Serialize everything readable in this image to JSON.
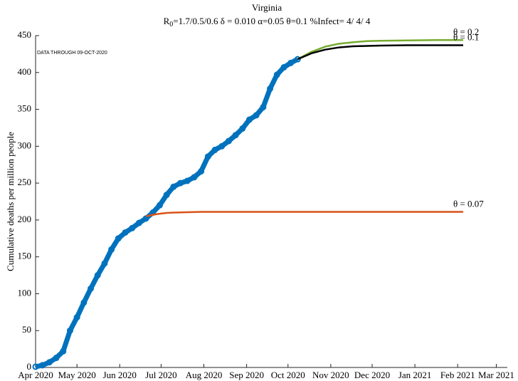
{
  "chart_data": {
    "type": "line",
    "title": "Virginia",
    "subtitle_parts": [
      "R",
      "0",
      "=1.7/0.5/0.6  δ = 0.010  α=0.05  θ=0.1  %Infect= 4/ 4/ 4"
    ],
    "annotation": "DATA THROUGH 09-OCT-2020",
    "ylabel": "Cumulative deaths per million people",
    "xlim": [
      0,
      342
    ],
    "ylim": [
      0,
      450
    ],
    "yticks": [
      0,
      50,
      100,
      150,
      200,
      250,
      300,
      350,
      400,
      450
    ],
    "xticks": [
      {
        "value": 0,
        "label": "Apr 2020"
      },
      {
        "value": 30,
        "label": "May 2020"
      },
      {
        "value": 61,
        "label": "Jun 2020"
      },
      {
        "value": 91,
        "label": "Jul 2020"
      },
      {
        "value": 122,
        "label": "Aug 2020"
      },
      {
        "value": 153,
        "label": "Sep 2020"
      },
      {
        "value": 183,
        "label": "Oct 2020"
      },
      {
        "value": 214,
        "label": "Nov 2020"
      },
      {
        "value": 244,
        "label": "Dec 2020"
      },
      {
        "value": 275,
        "label": "Jan 2021"
      },
      {
        "value": 306,
        "label": "Feb 2021"
      },
      {
        "value": 334,
        "label": "Mar 2021"
      }
    ],
    "series": [
      {
        "color": "#0072BD",
        "markers": true,
        "x": [
          0,
          5,
          10,
          15,
          20,
          25,
          30,
          35,
          40,
          45,
          50,
          55,
          60,
          65,
          70,
          75,
          80,
          85,
          90,
          95,
          100,
          105,
          110,
          115,
          120,
          125,
          130,
          135,
          140,
          145,
          150,
          155,
          160,
          165,
          170,
          175,
          180,
          185,
          190
        ],
        "values": [
          1,
          3,
          7,
          13,
          22,
          50,
          68,
          88,
          107,
          125,
          141,
          160,
          175,
          183,
          189,
          196,
          202,
          210,
          220,
          234,
          245,
          250,
          253,
          258,
          266,
          286,
          295,
          300,
          307,
          315,
          324,
          336,
          342,
          353,
          378,
          397,
          407,
          413,
          418
        ]
      },
      {
        "name": "θ = 0.2",
        "color": "#77AC30",
        "x": [
          190,
          200,
          210,
          220,
          230,
          240,
          250,
          270,
          290,
          310
        ],
        "values": [
          418,
          428,
          435,
          439,
          441,
          442.5,
          443,
          443.5,
          444,
          444
        ]
      },
      {
        "name": "θ = 0.1",
        "color": "#000000",
        "x": [
          190,
          200,
          210,
          220,
          230,
          240,
          250,
          270,
          290,
          310
        ],
        "values": [
          418,
          426,
          431,
          434,
          435.5,
          436,
          436.5,
          437,
          437,
          437
        ]
      },
      {
        "name": "θ = 0.07",
        "color": "#D95319",
        "x": [
          80,
          85,
          90,
          95,
          100,
          110,
          120,
          140,
          180,
          240,
          310
        ],
        "values": [
          205,
          207,
          208.5,
          209.5,
          210,
          210.5,
          211,
          211,
          211,
          211,
          211
        ]
      }
    ]
  }
}
